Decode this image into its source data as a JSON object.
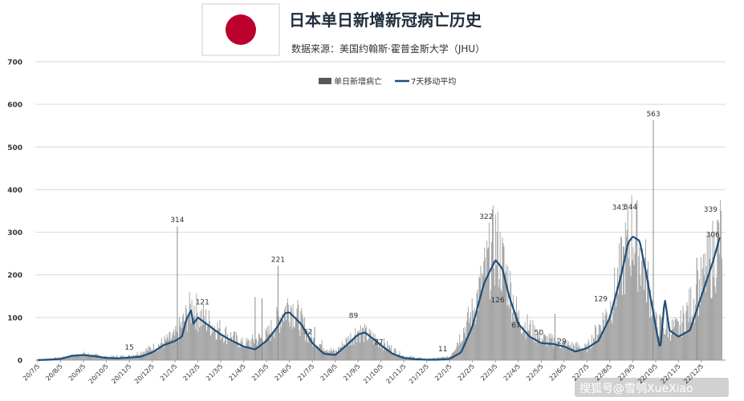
{
  "chart_data": {
    "type": "bar",
    "title": "日本单日新增新冠病亡历史",
    "subtitle": "数据来源：美国约翰斯·霍普金斯大学（JHU）",
    "legend": {
      "bar_label": "单日新增病亡",
      "line_label": "7天移动平均",
      "placement": "top-center"
    },
    "ylim": [
      0,
      700
    ],
    "yticks": [
      "0",
      "100",
      "200",
      "300",
      "400",
      "500",
      "600",
      "700"
    ],
    "xticks": [
      "20/7/5",
      "20/8/5",
      "20/9/5",
      "20/10/5",
      "20/11/5",
      "20/12/5",
      "21/1/5",
      "21/2/5",
      "21/3/5",
      "21/4/5",
      "21/5/5",
      "21/6/5",
      "21/7/5",
      "21/8/5",
      "21/9/5",
      "21/10/5",
      "21/11/5",
      "21/12/5",
      "22/1/5",
      "22/2/5",
      "22/3/5",
      "22/4/5",
      "22/5/5",
      "22/6/5",
      "22/7/5",
      "22/8/5",
      "22/9/5",
      "22/10/5",
      "22/11/5",
      "22/12/5"
    ],
    "series": [
      {
        "name": "7天移动平均 (monthly keypoints, month index → value)",
        "points": [
          [
            0,
            0
          ],
          [
            0.5,
            1
          ],
          [
            1,
            3
          ],
          [
            1.5,
            10
          ],
          [
            2,
            12
          ],
          [
            2.5,
            9
          ],
          [
            3,
            5
          ],
          [
            3.5,
            4
          ],
          [
            4,
            6
          ],
          [
            4.5,
            8
          ],
          [
            5,
            18
          ],
          [
            5.5,
            35
          ],
          [
            6,
            45
          ],
          [
            6.3,
            55
          ],
          [
            6.5,
            95
          ],
          [
            6.7,
            118
          ],
          [
            6.8,
            85
          ],
          [
            7,
            100
          ],
          [
            7.5,
            80
          ],
          [
            8,
            60
          ],
          [
            8.5,
            45
          ],
          [
            9,
            32
          ],
          [
            9.5,
            25
          ],
          [
            10,
            45
          ],
          [
            10.5,
            80
          ],
          [
            10.8,
            110
          ],
          [
            11,
            112
          ],
          [
            11.5,
            85
          ],
          [
            12,
            40
          ],
          [
            12.5,
            15
          ],
          [
            13,
            12
          ],
          [
            13.5,
            35
          ],
          [
            14,
            60
          ],
          [
            14.3,
            65
          ],
          [
            14.7,
            48
          ],
          [
            15,
            35
          ],
          [
            15.5,
            15
          ],
          [
            16,
            5
          ],
          [
            16.5,
            2
          ],
          [
            17,
            1
          ],
          [
            17.5,
            1
          ],
          [
            18,
            3
          ],
          [
            18.5,
            18
          ],
          [
            19,
            80
          ],
          [
            19.5,
            180
          ],
          [
            20,
            235
          ],
          [
            20.3,
            215
          ],
          [
            20.6,
            150
          ],
          [
            21,
            85
          ],
          [
            21.5,
            55
          ],
          [
            22,
            40
          ],
          [
            22.5,
            38
          ],
          [
            23,
            32
          ],
          [
            23.5,
            20
          ],
          [
            24,
            28
          ],
          [
            24.5,
            45
          ],
          [
            25,
            100
          ],
          [
            25.5,
            200
          ],
          [
            25.8,
            275
          ],
          [
            26,
            290
          ],
          [
            26.3,
            280
          ],
          [
            26.6,
            200
          ],
          [
            27,
            80
          ],
          [
            27.2,
            25
          ],
          [
            27.4,
            145
          ],
          [
            27.6,
            70
          ],
          [
            28,
            55
          ],
          [
            28.5,
            70
          ],
          [
            29,
            150
          ],
          [
            29.5,
            230
          ],
          [
            29.8,
            288
          ]
        ]
      },
      {
        "name": "单日新增病亡 (bars, monthly envelope keypoints)",
        "points": [
          [
            0,
            2
          ],
          [
            1,
            6
          ],
          [
            2,
            16
          ],
          [
            3,
            8
          ],
          [
            4,
            10
          ],
          [
            5,
            30
          ],
          [
            6,
            60
          ],
          [
            6.8,
            140
          ],
          [
            7,
            115
          ],
          [
            8,
            75
          ],
          [
            9,
            40
          ],
          [
            10,
            60
          ],
          [
            11,
            145
          ],
          [
            12,
            50
          ],
          [
            13,
            20
          ],
          [
            14,
            75
          ],
          [
            15,
            45
          ],
          [
            16,
            10
          ],
          [
            17,
            3
          ],
          [
            18,
            8
          ],
          [
            19,
            120
          ],
          [
            20,
            300
          ],
          [
            20.6,
            190
          ],
          [
            21,
            105
          ],
          [
            22,
            55
          ],
          [
            23,
            40
          ],
          [
            24,
            30
          ],
          [
            25,
            130
          ],
          [
            26,
            330
          ],
          [
            26.6,
            220
          ],
          [
            27,
            90
          ],
          [
            27.6,
            80
          ],
          [
            28,
            80
          ],
          [
            29,
            190
          ],
          [
            29.9,
            320
          ]
        ]
      }
    ],
    "annotations": [
      {
        "label": "15",
        "month": 4.0,
        "value": 15
      },
      {
        "label": "314",
        "month": 6.1,
        "value": 314
      },
      {
        "label": "121",
        "month": 7.2,
        "value": 121
      },
      {
        "label": "221",
        "month": 10.5,
        "value": 221
      },
      {
        "label": "52",
        "month": 11.8,
        "value": 52
      },
      {
        "label": "89",
        "month": 13.8,
        "value": 89
      },
      {
        "label": "27",
        "month": 14.9,
        "value": 27
      },
      {
        "label": "11",
        "month": 17.7,
        "value": 11
      },
      {
        "label": "322",
        "month": 19.6,
        "value": 322
      },
      {
        "label": "126",
        "month": 20.1,
        "value": 126
      },
      {
        "label": "67",
        "month": 20.9,
        "value": 67
      },
      {
        "label": "50",
        "month": 21.9,
        "value": 50
      },
      {
        "label": "29",
        "month": 22.9,
        "value": 29
      },
      {
        "label": "129",
        "month": 24.6,
        "value": 129
      },
      {
        "label": "343",
        "month": 25.4,
        "value": 343
      },
      {
        "label": "344",
        "month": 25.9,
        "value": 344
      },
      {
        "label": "563",
        "month": 26.9,
        "value": 563
      },
      {
        "label": "339",
        "month": 29.4,
        "value": 339
      },
      {
        "label": "306",
        "month": 29.5,
        "value": 306
      }
    ],
    "spikes": [
      {
        "month": 6.1,
        "value": 314
      },
      {
        "month": 9.5,
        "value": 148
      },
      {
        "month": 9.8,
        "value": 145
      },
      {
        "month": 10.5,
        "value": 221
      },
      {
        "month": 12.1,
        "value": 78
      },
      {
        "month": 22.6,
        "value": 108
      },
      {
        "month": 26.9,
        "value": 563
      },
      {
        "month": 28.8,
        "value": 240
      }
    ]
  },
  "watermark": "搜狐号@雪鸮XueXiao",
  "colors": {
    "bar": "#9e9e9e",
    "line": "#1f4e79",
    "grid": "#d9d9d9",
    "flag_red": "#bc002d",
    "text": "#333333"
  }
}
